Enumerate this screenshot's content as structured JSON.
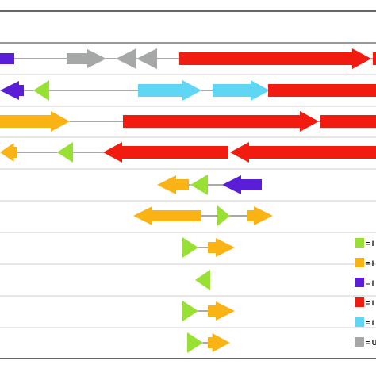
{
  "palette": {
    "green": "#99e035",
    "orange": "#f9b314",
    "purple": "#5a1ed8",
    "red": "#f21b10",
    "cyan": "#5fd6f4",
    "gray": "#a6a8a8",
    "border": "#333333",
    "row_line": "#cfcfcf",
    "backbone": "#555555"
  },
  "legend": [
    {
      "color": "green",
      "label": "= I"
    },
    {
      "color": "orange",
      "label": "= I"
    },
    {
      "color": "purple",
      "label": "= I"
    },
    {
      "color": "red",
      "label": "= I"
    },
    {
      "color": "cyan",
      "label": "= I"
    },
    {
      "color": "gray",
      "label": "= U"
    }
  ]
}
